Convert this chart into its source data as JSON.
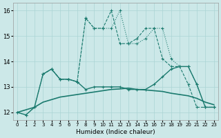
{
  "xlabel": "Humidex (Indice chaleur)",
  "xlim": [
    -0.5,
    23.5
  ],
  "ylim": [
    11.7,
    16.3
  ],
  "yticks": [
    12,
    13,
    14,
    15,
    16
  ],
  "xticks": [
    0,
    1,
    2,
    3,
    4,
    5,
    6,
    7,
    8,
    9,
    10,
    11,
    12,
    13,
    14,
    15,
    16,
    17,
    18,
    19,
    20,
    21,
    22,
    23
  ],
  "bg_color": "#cce8e8",
  "grid_color": "#aad4d4",
  "line_color": "#1a7a6e",
  "dotted_x": [
    0,
    1,
    2,
    3,
    4,
    5,
    6,
    7,
    8,
    9,
    10,
    11,
    12,
    13,
    14,
    15,
    16,
    17,
    18,
    19,
    20,
    21,
    22,
    23
  ],
  "dotted_y": [
    12.0,
    11.9,
    12.2,
    13.5,
    13.7,
    13.3,
    13.3,
    13.2,
    15.7,
    15.3,
    15.3,
    15.3,
    16.0,
    14.7,
    14.7,
    14.9,
    15.3,
    15.3,
    14.1,
    13.8,
    13.8,
    13.1,
    12.2,
    12.2
  ],
  "dashed_x": [
    3,
    4,
    5,
    6,
    7,
    8,
    9,
    10,
    11,
    12,
    13,
    14,
    15,
    16,
    17,
    18,
    19,
    20,
    21,
    22,
    23
  ],
  "dashed_y": [
    13.5,
    13.7,
    13.3,
    13.3,
    13.2,
    15.7,
    15.3,
    15.3,
    16.0,
    14.7,
    14.7,
    14.9,
    15.3,
    15.3,
    14.1,
    13.8,
    13.8,
    13.1,
    12.2,
    12.2,
    12.2
  ],
  "solid_hi_x": [
    0,
    1,
    2,
    3,
    4,
    5,
    6,
    7,
    8,
    9,
    10,
    11,
    12,
    13,
    14,
    15,
    16,
    17,
    18,
    19,
    20,
    21,
    22,
    23
  ],
  "solid_hi_y": [
    12.0,
    11.9,
    12.2,
    13.5,
    13.7,
    13.3,
    13.3,
    13.2,
    12.9,
    13.0,
    13.0,
    13.0,
    13.0,
    12.9,
    12.9,
    12.9,
    13.1,
    13.4,
    13.7,
    13.8,
    13.8,
    13.1,
    12.2,
    12.2
  ],
  "solid_lo_x": [
    0,
    2,
    3,
    4,
    5,
    6,
    7,
    8,
    9,
    10,
    11,
    12,
    13,
    14,
    15,
    16,
    17,
    18,
    19,
    20,
    21,
    22,
    23
  ],
  "solid_lo_y": [
    12.0,
    12.2,
    12.4,
    12.5,
    12.6,
    12.65,
    12.7,
    12.75,
    12.8,
    12.85,
    12.9,
    12.92,
    12.95,
    12.9,
    12.88,
    12.85,
    12.82,
    12.75,
    12.7,
    12.65,
    12.55,
    12.4,
    12.3
  ]
}
